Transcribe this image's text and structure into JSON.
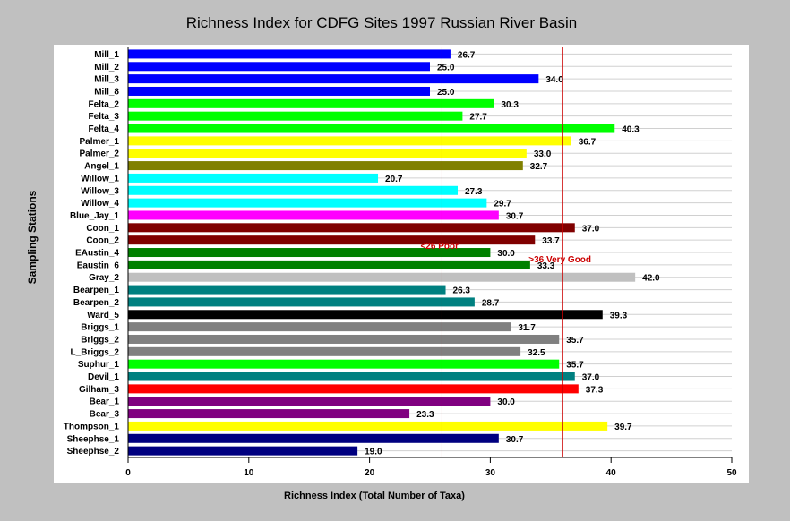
{
  "chart_data": {
    "type": "bar",
    "orientation": "horizontal",
    "title": "Richness Index for CDFG Sites 1997 Russian River Basin",
    "xlabel": "Richness Index (Total Number of Taxa)",
    "ylabel": "Sampling Stations",
    "xlim": [
      0,
      50
    ],
    "xticks": [
      0,
      10,
      20,
      30,
      40,
      50
    ],
    "grid": "horizontal",
    "categories": [
      "Mill_1",
      "Mill_2",
      "Mill_3",
      "Mill_8",
      "Felta_2",
      "Felta_3",
      "Felta_4",
      "Palmer_1",
      "Palmer_2",
      "Angel_1",
      "Willow_1",
      "Willow_3",
      "Willow_4",
      "Blue_Jay_1",
      "Coon_1",
      "Coon_2",
      "EAustin_4",
      "Eaustin_6",
      "Gray_2",
      "Bearpen_1",
      "Bearpen_2",
      "Ward_5",
      "Briggs_1",
      "Briggs_2",
      "L_Briggs_2",
      "Suphur_1",
      "Devil_1",
      "Gilham_3",
      "Bear_1",
      "Bear_3",
      "Thompson_1",
      "Sheephse_1",
      "Sheephse_2"
    ],
    "values": [
      26.7,
      25.0,
      34.0,
      25.0,
      30.3,
      27.7,
      40.3,
      36.7,
      33.0,
      32.7,
      20.7,
      27.3,
      29.7,
      30.7,
      37.0,
      33.7,
      30.0,
      33.3,
      42.0,
      26.3,
      28.7,
      39.3,
      31.7,
      35.7,
      32.5,
      35.7,
      37.0,
      37.3,
      30.0,
      23.3,
      39.7,
      30.7,
      19.0
    ],
    "value_labels": [
      "26.7",
      "25.0",
      "34.0",
      "25.0",
      "30.3",
      "27.7",
      "40.3",
      "36.7",
      "33.0",
      "32.7",
      "20.7",
      "27.3",
      "29.7",
      "30.7",
      "37.0",
      "33.7",
      "30.0",
      "33.3",
      "42.0",
      "26.3",
      "28.7",
      "39.3",
      "31.7",
      "35.7",
      "32.5",
      "35.7",
      "37.0",
      "37.3",
      "30.0",
      "23.3",
      "39.7",
      "30.7",
      "19.0"
    ],
    "colors": [
      "#0000ff",
      "#0000ff",
      "#0000ff",
      "#0000ff",
      "#00ff00",
      "#00ff00",
      "#00ff00",
      "#ffff00",
      "#ffff00",
      "#808000",
      "#00ffff",
      "#00ffff",
      "#00ffff",
      "#ff00ff",
      "#800000",
      "#800000",
      "#008000",
      "#008000",
      "#c0c0c0",
      "#008080",
      "#008080",
      "#000000",
      "#808080",
      "#808080",
      "#808080",
      "#00ff00",
      "#008080",
      "#ff0000",
      "#800080",
      "#800080",
      "#ffff00",
      "#000080",
      "#000080"
    ],
    "reference_lines": [
      {
        "x": 26,
        "label": "<26 Poor",
        "color": "#cc0000"
      },
      {
        "x": 36,
        "label": ">36 Very Good",
        "color": "#cc0000"
      }
    ]
  }
}
